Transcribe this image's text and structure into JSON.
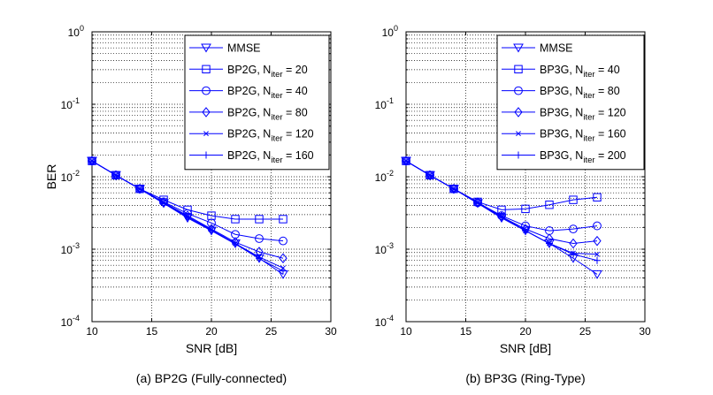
{
  "chart_data": [
    {
      "type": "line",
      "caption": "(a) BP2G (Fully-connected)",
      "xlabel": "SNR [dB]",
      "ylabel": "BER",
      "xlim": [
        10,
        30
      ],
      "ylim": [
        0.0001,
        1
      ],
      "yscale": "log",
      "grid": true,
      "legend_position": "top-right",
      "xticks": [
        "10",
        "15",
        "20",
        "25",
        "30"
      ],
      "yticks": [
        {
          "base": "10",
          "exp": "0"
        },
        {
          "base": "10",
          "exp": "-1"
        },
        {
          "base": "10",
          "exp": "-2"
        },
        {
          "base": "10",
          "exp": "-3"
        },
        {
          "base": "10",
          "exp": "-4"
        }
      ],
      "x": [
        10,
        12,
        14,
        16,
        18,
        20,
        22,
        24,
        26
      ],
      "series": [
        {
          "name": "MMSE",
          "label": "MMSE",
          "sub": "",
          "eq": "",
          "marker": "triangle-down",
          "values": [
            0.0165,
            0.0105,
            0.0068,
            0.0043,
            0.0027,
            0.0018,
            0.0012,
            0.00075,
            0.00045
          ]
        },
        {
          "name": "BP2G, Niter = 20",
          "label": "BP2G, N",
          "sub": "iter",
          "eq": " = 20",
          "marker": "square",
          "values": [
            0.0165,
            0.0105,
            0.0068,
            0.0048,
            0.0035,
            0.0029,
            0.0026,
            0.0026,
            0.0026
          ]
        },
        {
          "name": "BP2G, Niter = 40",
          "label": "BP2G, N",
          "sub": "iter",
          "eq": " = 40",
          "marker": "circle",
          "values": [
            0.0165,
            0.0105,
            0.0068,
            0.0045,
            0.0031,
            0.0023,
            0.0016,
            0.0014,
            0.0013
          ]
        },
        {
          "name": "BP2G, Niter = 80",
          "label": "BP2G, N",
          "sub": "iter",
          "eq": " = 80",
          "marker": "diamond",
          "values": [
            0.0165,
            0.0105,
            0.0068,
            0.0044,
            0.0029,
            0.0019,
            0.00125,
            0.00092,
            0.00075
          ]
        },
        {
          "name": "BP2G, Niter = 120",
          "label": "BP2G, N",
          "sub": "iter",
          "eq": " = 120",
          "marker": "x",
          "values": [
            0.0165,
            0.0105,
            0.0068,
            0.0044,
            0.0028,
            0.00185,
            0.0012,
            0.00078,
            0.00055
          ]
        },
        {
          "name": "BP2G, Niter = 160",
          "label": "BP2G, N",
          "sub": "iter",
          "eq": " = 160",
          "marker": "plus",
          "values": [
            0.0165,
            0.0105,
            0.0068,
            0.0043,
            0.0028,
            0.0018,
            0.00118,
            0.00074,
            0.0005
          ]
        }
      ]
    },
    {
      "type": "line",
      "caption": "(b) BP3G (Ring-Type)",
      "xlabel": "SNR [dB]",
      "ylabel": "",
      "xlim": [
        10,
        30
      ],
      "ylim": [
        0.0001,
        1
      ],
      "yscale": "log",
      "grid": true,
      "legend_position": "top-right",
      "xticks": [
        "10",
        "15",
        "20",
        "25",
        "30"
      ],
      "yticks": [
        {
          "base": "10",
          "exp": "0"
        },
        {
          "base": "10",
          "exp": "-1"
        },
        {
          "base": "10",
          "exp": "-2"
        },
        {
          "base": "10",
          "exp": "-3"
        },
        {
          "base": "10",
          "exp": "-4"
        }
      ],
      "x": [
        10,
        12,
        14,
        16,
        18,
        20,
        22,
        24,
        26
      ],
      "series": [
        {
          "name": "MMSE",
          "label": "MMSE",
          "sub": "",
          "eq": "",
          "marker": "triangle-down",
          "values": [
            0.0165,
            0.0105,
            0.0068,
            0.0043,
            0.0027,
            0.0018,
            0.0012,
            0.00075,
            0.00045
          ]
        },
        {
          "name": "BP3G, Niter = 40",
          "label": "BP3G, N",
          "sub": "iter",
          "eq": " = 40",
          "marker": "square",
          "values": [
            0.0165,
            0.0105,
            0.0068,
            0.0045,
            0.0035,
            0.0036,
            0.0041,
            0.0048,
            0.0052
          ]
        },
        {
          "name": "BP3G, Niter = 80",
          "label": "BP3G, N",
          "sub": "iter",
          "eq": " = 80",
          "marker": "circle",
          "values": [
            0.0165,
            0.0105,
            0.0068,
            0.0044,
            0.0029,
            0.0021,
            0.0018,
            0.0019,
            0.0021
          ]
        },
        {
          "name": "BP3G, Niter = 120",
          "label": "BP3G, N",
          "sub": "iter",
          "eq": " = 120",
          "marker": "diamond",
          "values": [
            0.0165,
            0.0105,
            0.0068,
            0.0044,
            0.0028,
            0.0019,
            0.0014,
            0.0012,
            0.0013
          ]
        },
        {
          "name": "BP3G, Niter = 160",
          "label": "BP3G, N",
          "sub": "iter",
          "eq": " = 160",
          "marker": "x",
          "values": [
            0.0165,
            0.0105,
            0.0068,
            0.0044,
            0.0028,
            0.0018,
            0.0012,
            0.00088,
            0.00085
          ]
        },
        {
          "name": "BP3G, Niter = 200",
          "label": "BP3G, N",
          "sub": "iter",
          "eq": " = 200",
          "marker": "plus",
          "values": [
            0.0165,
            0.0105,
            0.0068,
            0.0043,
            0.0028,
            0.0018,
            0.0012,
            0.00085,
            0.0007
          ]
        }
      ]
    }
  ],
  "style": {
    "line_color": "#0000ff",
    "axis_color": "#000000",
    "grid_color": "#000000",
    "background": "#ffffff"
  }
}
